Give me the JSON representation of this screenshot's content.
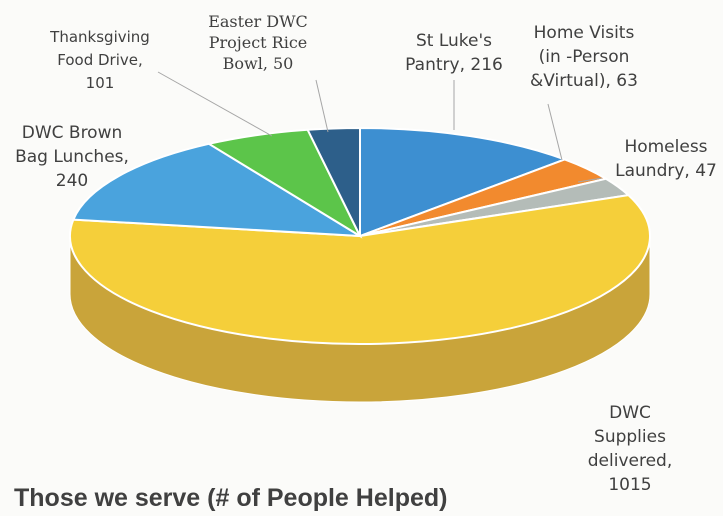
{
  "chart_data": {
    "type": "pie",
    "title": "Those we serve (# of People Helped)",
    "slices": [
      {
        "label_lines": [
          "St Luke's",
          "Pantry, 216"
        ],
        "value": 216,
        "color": "#3d8fd1",
        "side": "#2b6aa0"
      },
      {
        "label_lines": [
          "Home Visits",
          "(in -Person",
          "&Virtual), 63"
        ],
        "value": 63,
        "color": "#f28a2e",
        "side": "#c0681c"
      },
      {
        "label_lines": [
          "Homeless",
          "Laundry, 47"
        ],
        "value": 47,
        "color": "#b4bcb8",
        "side": "#8e9591"
      },
      {
        "label_lines": [
          "DWC",
          "Supplies",
          "delivered,",
          "1015"
        ],
        "value": 1015,
        "color": "#f5cf3a",
        "side": "#c9a43a"
      },
      {
        "label_lines": [
          "DWC Brown",
          "Bag Lunches,",
          "240"
        ],
        "value": 240,
        "color": "#4aa3dd",
        "side": "#3582b5"
      },
      {
        "label_lines": [
          "Thanksgiving",
          "Food Drive,",
          "101"
        ],
        "value": 101,
        "color": "#5cc54a",
        "side": "#3f9532"
      },
      {
        "label_lines": [
          "Easter DWC",
          "Project Rice",
          "Bowl, 50"
        ],
        "value": 50,
        "color": "#2d5f8a",
        "side": "#1f4463"
      }
    ]
  }
}
